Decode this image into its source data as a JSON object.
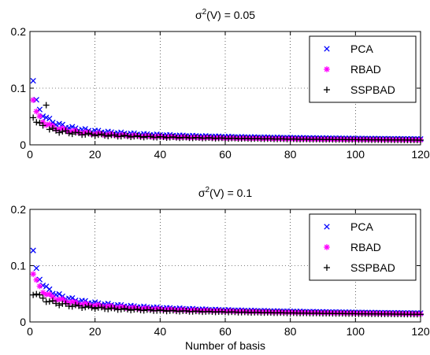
{
  "chart_data": [
    {
      "type": "scatter",
      "title_main": "σ",
      "title_sup": "2",
      "title_rest": "(V) = 0.05",
      "xlabel": "",
      "ylabel": "",
      "xlim": [
        0,
        120
      ],
      "ylim": [
        0,
        0.2
      ],
      "xticks": [
        0,
        20,
        40,
        60,
        80,
        100,
        120
      ],
      "yticks": [
        0,
        0.1,
        0.2
      ],
      "xtick_labels": [
        "0",
        "20",
        "40",
        "60",
        "80",
        "100",
        "120"
      ],
      "ytick_labels": [
        "0",
        "0.1",
        "0.2"
      ],
      "grid": true,
      "legend_position": "top-right",
      "series": [
        {
          "name": "PCA",
          "marker": "x",
          "color": "#0000ff",
          "a": 0.105,
          "b": 0.55,
          "c": 0.005,
          "first": 0.113
        },
        {
          "name": "RBAD",
          "marker": "asterisk",
          "color": "#ff00ff",
          "a": 0.078,
          "b": 0.52,
          "c": 0.004,
          "first": 0.079
        },
        {
          "name": "SSPBAD",
          "marker": "plus",
          "color": "#000000",
          "a": 0.052,
          "b": 0.4,
          "c": 0.003,
          "first": 0.048,
          "spike_x": 5,
          "spike_y": 0.07
        }
      ]
    },
    {
      "type": "scatter",
      "title_main": "σ",
      "title_sup": "2",
      "title_rest": "(V) = 0.1",
      "xlabel": "Number of basis",
      "ylabel": "",
      "xlim": [
        0,
        120
      ],
      "ylim": [
        0,
        0.2
      ],
      "xticks": [
        0,
        20,
        40,
        60,
        80,
        100,
        120
      ],
      "yticks": [
        0,
        0.1,
        0.2
      ],
      "xtick_labels": [
        "0",
        "20",
        "40",
        "60",
        "80",
        "100",
        "120"
      ],
      "ytick_labels": [
        "0",
        "0.1",
        "0.2"
      ],
      "grid": true,
      "legend_position": "top-right",
      "series": [
        {
          "name": "PCA",
          "marker": "x",
          "color": "#0000ff",
          "a": 0.12,
          "b": 0.5,
          "c": 0.008,
          "first": 0.127
        },
        {
          "name": "RBAD",
          "marker": "asterisk",
          "color": "#ff00ff",
          "a": 0.09,
          "b": 0.45,
          "c": 0.007,
          "first": 0.085
        },
        {
          "name": "SSPBAD",
          "marker": "plus",
          "color": "#000000",
          "a": 0.058,
          "b": 0.35,
          "c": 0.006,
          "first": 0.048
        }
      ]
    }
  ]
}
